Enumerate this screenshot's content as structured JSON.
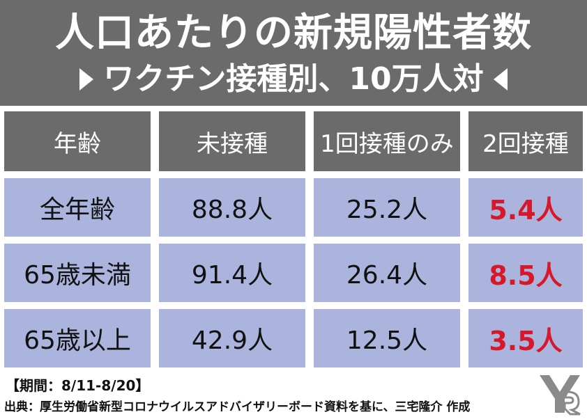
{
  "title": {
    "line1": "人口あたりの新規陽性者数",
    "line2": "ワクチン接種別、10万人対"
  },
  "chart_data": {
    "type": "table",
    "columns": [
      "年齢",
      "未接種",
      "1回接種のみ",
      "2回接種"
    ],
    "rows": [
      {
        "label": "全年齢",
        "values": [
          "88.8人",
          "25.2人",
          "5.4人"
        ]
      },
      {
        "label": "65歳未満",
        "values": [
          "91.4人",
          "26.4人",
          "8.5人"
        ]
      },
      {
        "label": "65歳以上",
        "values": [
          "42.9人",
          "12.5人",
          "3.5人"
        ]
      }
    ],
    "highlight_color": "#d6182a",
    "header_color": "#6b6b6b",
    "cell_color": "#aab4dd"
  },
  "footer": {
    "period": "【期間：8/11-8/20】",
    "source": "出典：厚生労働省新型コロナウイルスアドバイザリーボード資料を基に、三宅隆介 作成"
  },
  "icons": {
    "logo": "logo-mark"
  }
}
